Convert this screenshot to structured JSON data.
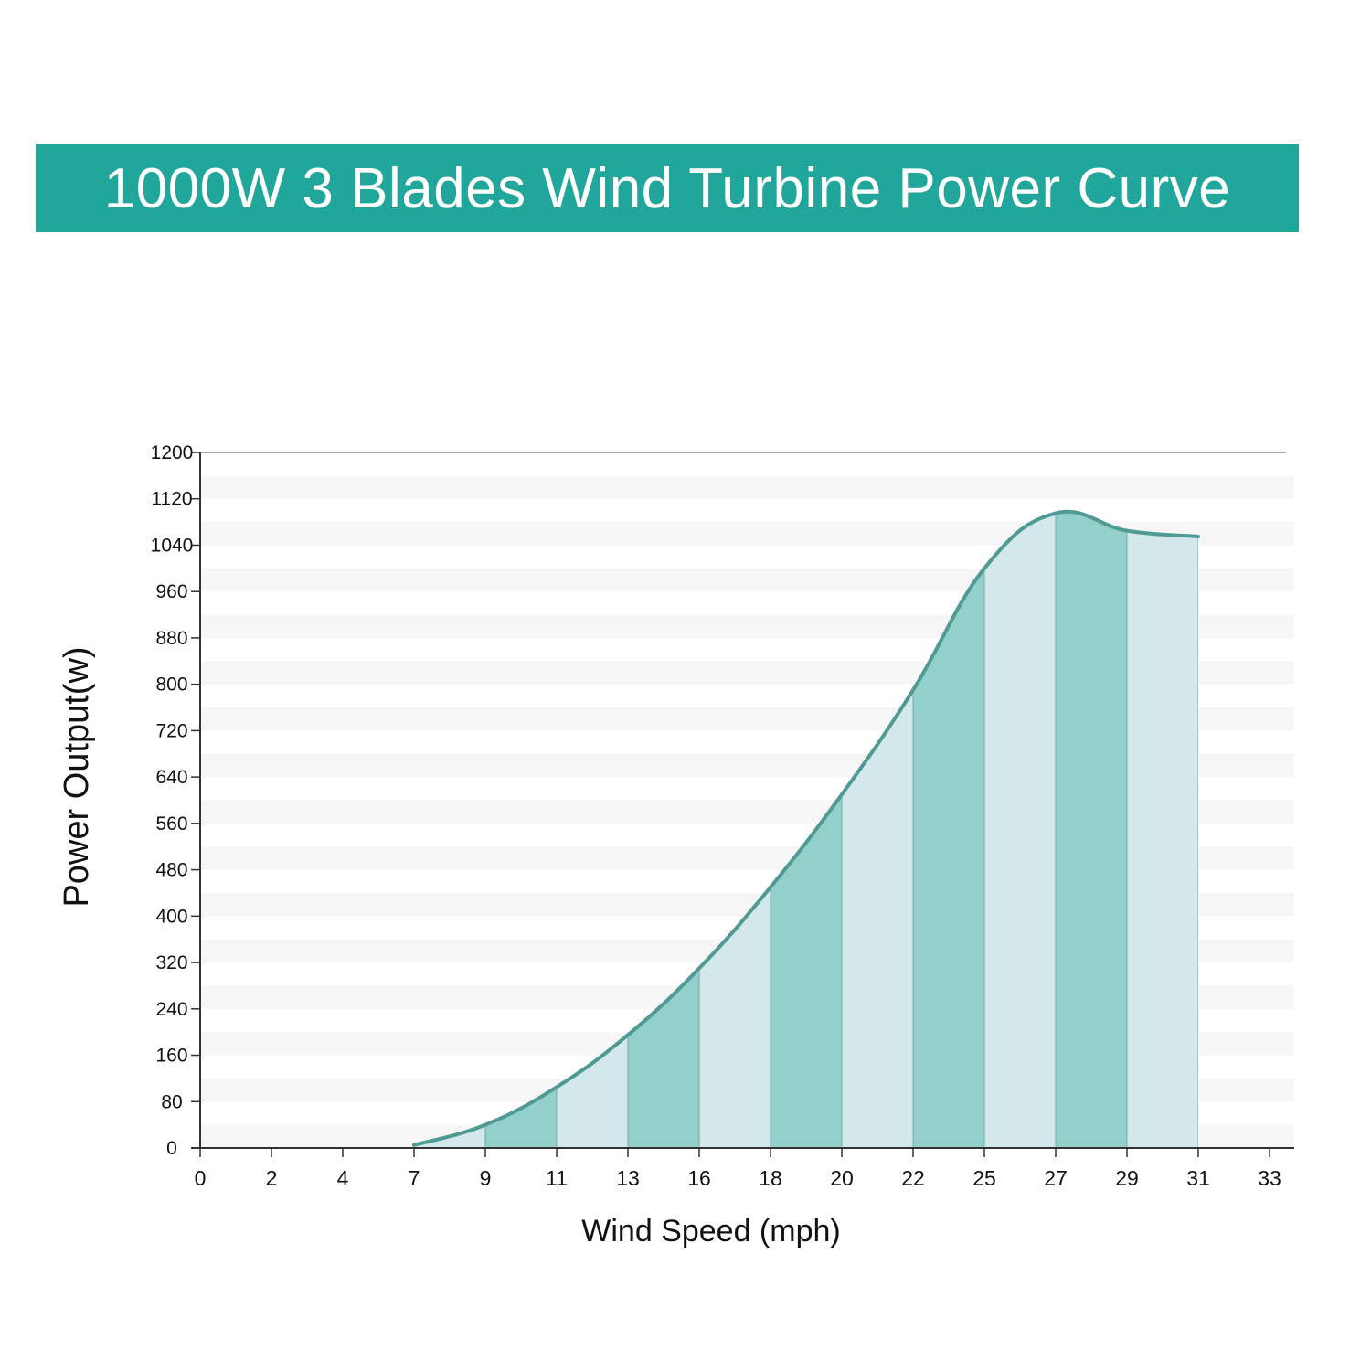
{
  "colors": {
    "banner": "#20a69a",
    "curve": "#4f9a94",
    "fill_dark": "#94d0cb",
    "fill_light": "#d3e8ea",
    "stripe": "#f6f6f6",
    "axis": "#333333"
  },
  "chart_data": {
    "type": "area",
    "title": "1000W 3 Blades Wind Turbine Power Curve",
    "xlabel": "Wind Speed (mph)",
    "ylabel": "Power Output(w)",
    "x_ticks": [
      "0",
      "2",
      "4",
      "7",
      "9",
      "11",
      "13",
      "16",
      "18",
      "20",
      "22",
      "25",
      "27",
      "29",
      "31",
      "33"
    ],
    "y_ticks": [
      0,
      80,
      160,
      240,
      320,
      400,
      480,
      560,
      640,
      720,
      800,
      880,
      960,
      1040,
      1120,
      1200
    ],
    "ylim": [
      0,
      1200
    ],
    "grid": "horizontal stripes",
    "series": [
      {
        "x": [
          "7",
          "9",
          "11",
          "13",
          "16",
          "18",
          "20",
          "22",
          "25",
          "27",
          "29",
          "31"
        ],
        "values": [
          5,
          40,
          105,
          195,
          310,
          450,
          610,
          790,
          1000,
          1095,
          1065,
          1055
        ]
      }
    ]
  }
}
